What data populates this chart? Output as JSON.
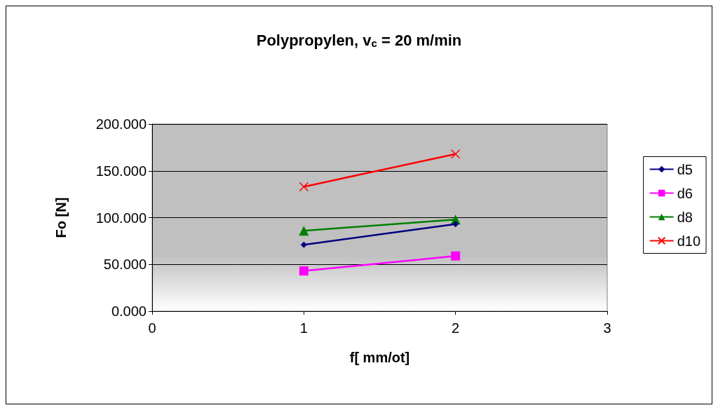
{
  "chart_data": {
    "type": "line",
    "title": "Polypropylen, v$_{c}$ = 20 m/min",
    "xlabel": "f[ mm/ot]",
    "ylabel": "Fo [N]",
    "x": [
      1,
      2
    ],
    "series": [
      {
        "name": "d5",
        "color": "#000080",
        "values": [
          71,
          93
        ],
        "marker": "diamond"
      },
      {
        "name": "d6",
        "color": "#ff00ff",
        "values": [
          43,
          59
        ],
        "marker": "square"
      },
      {
        "name": "d8",
        "color": "#008000",
        "values": [
          86,
          98
        ],
        "marker": "triangle"
      },
      {
        "name": "d10",
        "color": "#ff0000",
        "values": [
          133,
          168
        ],
        "marker": "cross"
      }
    ],
    "xlim": [
      0,
      3
    ],
    "xticks": [
      0,
      1,
      2,
      3
    ],
    "ylim": [
      0,
      200
    ],
    "yticks": [
      {
        "value": 0,
        "label": "0.000"
      },
      {
        "value": 50,
        "label": "50.000"
      },
      {
        "value": 100,
        "label": "100.000"
      },
      {
        "value": 150,
        "label": "150.000"
      },
      {
        "value": 200,
        "label": "200.000"
      }
    ],
    "grid": "y",
    "legend": "right"
  }
}
